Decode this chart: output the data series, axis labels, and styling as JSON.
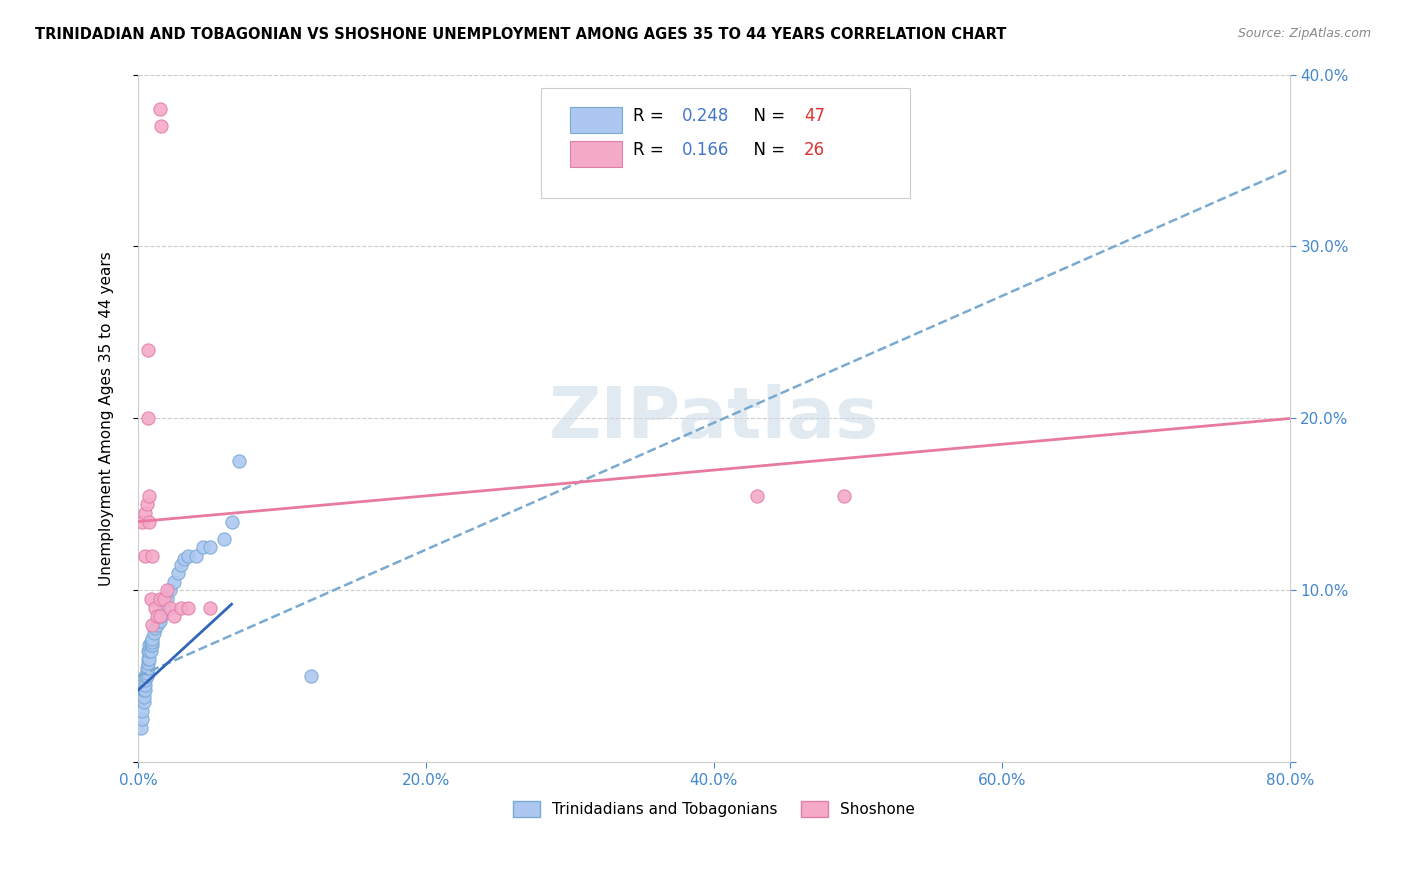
{
  "title": "TRINIDADIAN AND TOBAGONIAN VS SHOSHONE UNEMPLOYMENT AMONG AGES 35 TO 44 YEARS CORRELATION CHART",
  "source": "Source: ZipAtlas.com",
  "ylabel": "Unemployment Among Ages 35 to 44 years",
  "xlim": [
    0,
    0.8
  ],
  "ylim": [
    0,
    0.4
  ],
  "xticks": [
    0.0,
    0.2,
    0.4,
    0.6,
    0.8
  ],
  "yticks": [
    0.0,
    0.1,
    0.2,
    0.3,
    0.4
  ],
  "xticklabels": [
    "0.0%",
    "20.0%",
    "40.0%",
    "60.0%",
    "80.0%"
  ],
  "yticklabels": [
    "",
    "10.0%",
    "20.0%",
    "30.0%",
    "40.0%"
  ],
  "series1_name": "Trinidadians and Tobagonians",
  "series1_color": "#adc8f0",
  "series1_edge": "#7aaad4",
  "series1_R": 0.248,
  "series1_N": 47,
  "series2_name": "Shoshone",
  "series2_color": "#f5aac8",
  "series2_edge": "#e080a8",
  "series2_R": 0.166,
  "series2_N": 26,
  "trendline1_color": "#7aaad0",
  "trendline2_color": "#e87aa0",
  "legend_R_color": "#4477cc",
  "legend_N_color": "#dd3333",
  "watermark": "ZIPatlas",
  "background_color": "#ffffff",
  "grid_color": "#cccccc",
  "series1_x": [
    0.002,
    0.003,
    0.003,
    0.004,
    0.004,
    0.004,
    0.005,
    0.005,
    0.005,
    0.005,
    0.006,
    0.006,
    0.006,
    0.007,
    0.007,
    0.007,
    0.007,
    0.008,
    0.008,
    0.008,
    0.009,
    0.009,
    0.009,
    0.01,
    0.01,
    0.01,
    0.011,
    0.012,
    0.013,
    0.014,
    0.015,
    0.016,
    0.018,
    0.02,
    0.022,
    0.025,
    0.028,
    0.03,
    0.032,
    0.035,
    0.04,
    0.045,
    0.05,
    0.06,
    0.065,
    0.07,
    0.12
  ],
  "series1_y": [
    0.02,
    0.025,
    0.03,
    0.035,
    0.038,
    0.042,
    0.042,
    0.045,
    0.048,
    0.05,
    0.05,
    0.052,
    0.055,
    0.055,
    0.058,
    0.06,
    0.065,
    0.06,
    0.065,
    0.068,
    0.065,
    0.068,
    0.07,
    0.068,
    0.07,
    0.072,
    0.075,
    0.078,
    0.08,
    0.082,
    0.082,
    0.085,
    0.09,
    0.095,
    0.1,
    0.105,
    0.11,
    0.115,
    0.118,
    0.12,
    0.12,
    0.125,
    0.125,
    0.13,
    0.14,
    0.175,
    0.05
  ],
  "series2_x": [
    0.003,
    0.005,
    0.005,
    0.006,
    0.007,
    0.007,
    0.008,
    0.008,
    0.009,
    0.01,
    0.01,
    0.012,
    0.013,
    0.015,
    0.015,
    0.015,
    0.016,
    0.018,
    0.02,
    0.022,
    0.025,
    0.03,
    0.035,
    0.05,
    0.43,
    0.49
  ],
  "series2_y": [
    0.14,
    0.145,
    0.12,
    0.15,
    0.2,
    0.24,
    0.14,
    0.155,
    0.095,
    0.08,
    0.12,
    0.09,
    0.085,
    0.085,
    0.095,
    0.38,
    0.37,
    0.095,
    0.1,
    0.09,
    0.085,
    0.09,
    0.09,
    0.09,
    0.155,
    0.155
  ],
  "trendline1_x0": 0.0,
  "trendline1_y0": 0.05,
  "trendline1_x1": 0.8,
  "trendline1_y1": 0.345,
  "trendline2_x0": 0.0,
  "trendline2_y0": 0.14,
  "trendline2_x1": 0.8,
  "trendline2_y1": 0.2
}
